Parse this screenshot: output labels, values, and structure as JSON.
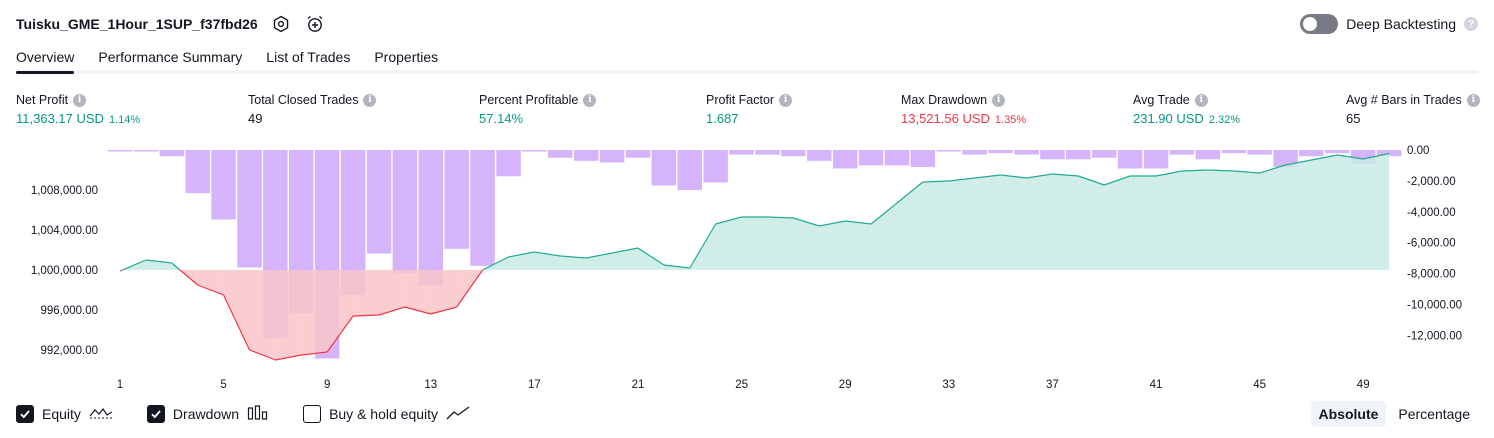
{
  "header": {
    "title": "Tuisku_GME_1Hour_1SUP_f37fbd26",
    "icons": [
      "settings-icon",
      "alarm-add-icon"
    ],
    "deep_backtesting_label": "Deep Backtesting",
    "deep_backtesting_on": false,
    "help": "?"
  },
  "tabs": [
    {
      "label": "Overview",
      "active": true
    },
    {
      "label": "Performance Summary",
      "active": false
    },
    {
      "label": "List of Trades",
      "active": false
    },
    {
      "label": "Properties",
      "active": false
    }
  ],
  "metrics": [
    {
      "label": "Net Profit",
      "value": "11,363.17 USD",
      "pct": "1.14%",
      "tone": "pos"
    },
    {
      "label": "Total Closed Trades",
      "value": "49",
      "pct": "",
      "tone": "neu"
    },
    {
      "label": "Percent Profitable",
      "value": "57.14%",
      "pct": "",
      "tone": "pos"
    },
    {
      "label": "Profit Factor",
      "value": "1.687",
      "pct": "",
      "tone": "pos"
    },
    {
      "label": "Max Drawdown",
      "value": "13,521.56 USD",
      "pct": "1.35%",
      "tone": "neg"
    },
    {
      "label": "Avg Trade",
      "value": "231.90 USD",
      "pct": "2.32%",
      "tone": "pos"
    },
    {
      "label": "Avg # Bars in Trades",
      "value": "65",
      "pct": "",
      "tone": "neu"
    }
  ],
  "info_glyph": "i",
  "chart_data": {
    "type": "line",
    "x": [
      1,
      2,
      3,
      4,
      5,
      6,
      7,
      8,
      9,
      10,
      11,
      12,
      13,
      14,
      15,
      16,
      17,
      18,
      19,
      20,
      21,
      22,
      23,
      24,
      25,
      26,
      27,
      28,
      29,
      30,
      31,
      32,
      33,
      34,
      35,
      36,
      37,
      38,
      39,
      40,
      41,
      42,
      43,
      44,
      45,
      46,
      47,
      48,
      49,
      50
    ],
    "x_ticks": [
      1,
      5,
      9,
      13,
      17,
      21,
      25,
      29,
      33,
      37,
      41,
      45,
      49
    ],
    "baseline": 1000000,
    "series": [
      {
        "role": "equity",
        "values": [
          999900,
          1001000,
          1000700,
          998500,
          997500,
          992000,
          991000,
          991500,
          991800,
          995400,
          995500,
          996300,
          995600,
          996300,
          1000000,
          1001300,
          1001800,
          1001400,
          1001200,
          1001700,
          1002200,
          1000500,
          1000200,
          1004600,
          1005300,
          1005300,
          1005200,
          1004400,
          1004900,
          1004600,
          1006700,
          1008800,
          1008900,
          1009200,
          1009500,
          1009200,
          1009600,
          1009400,
          1008500,
          1009400,
          1009400,
          1009900,
          1010000,
          1009900,
          1009700,
          1010500,
          1011000,
          1011500,
          1011100,
          1011650
        ]
      },
      {
        "role": "drawdown",
        "values": [
          0,
          -100,
          -400,
          -2800,
          -4500,
          -7600,
          -12200,
          -10600,
          -13500,
          -9400,
          -6700,
          -8000,
          -8800,
          -6400,
          -7500,
          -1700,
          0,
          -500,
          -700,
          -800,
          -500,
          -2300,
          -2600,
          -2100,
          -300,
          -300,
          -400,
          -700,
          -1200,
          -1000,
          -1000,
          -1100,
          -100,
          -300,
          -200,
          -300,
          -600,
          -600,
          -500,
          -1200,
          -1200,
          -300,
          -600,
          -200,
          -300,
          -1100,
          -400,
          -200,
          -900,
          -400
        ]
      }
    ],
    "y_left": {
      "ticks": [
        "1,008,000.00",
        "1,004,000.00",
        "1,000,000.00",
        "996,000.00",
        "992,000.00"
      ],
      "tick_values": [
        1008000,
        1004000,
        1000000,
        996000,
        992000
      ],
      "range": [
        989000,
        1012000
      ]
    },
    "y_right": {
      "ticks": [
        "0.00",
        "-2,000.00",
        "-4,000.00",
        "-6,000.00",
        "-8,000.00",
        "-10,000.00",
        "-12,000.00"
      ],
      "tick_values": [
        0,
        -2000,
        -4000,
        -6000,
        -8000,
        -10000,
        -12000
      ],
      "range": [
        -13600,
        0
      ]
    },
    "colors": {
      "equity_line": "#22ab94",
      "equity_fill": "#c8ebe3",
      "loss_line": "#f23645",
      "loss_fill": "#f9c5c9",
      "drawdown_bar": "#d6b4fb",
      "drawdown_bar_overlap_low": "#d68fc4",
      "drawdown_bar_overlap_high": "#a5afe0"
    }
  },
  "legend": [
    {
      "label": "Equity",
      "checked": true,
      "icon": "equity-line-icon"
    },
    {
      "label": "Drawdown",
      "checked": true,
      "icon": "drawdown-bars-icon"
    },
    {
      "label": "Buy & hold equity",
      "checked": false,
      "icon": "buy-hold-line-icon"
    }
  ],
  "view_modes": [
    {
      "label": "Absolute",
      "active": true
    },
    {
      "label": "Percentage",
      "active": false
    }
  ]
}
